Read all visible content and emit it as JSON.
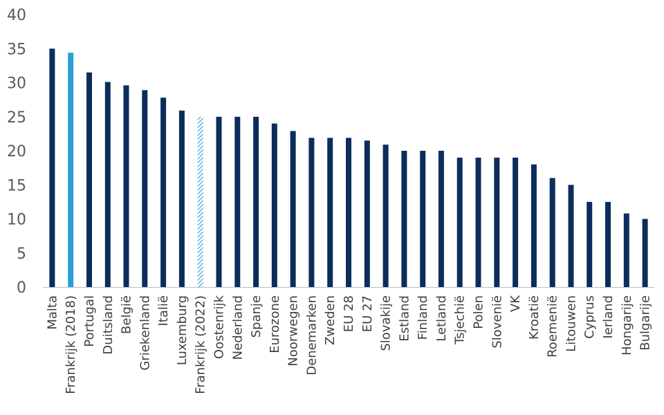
{
  "chart_data": {
    "type": "bar",
    "title": "",
    "xlabel": "",
    "ylabel": "",
    "ylim": [
      0,
      40
    ],
    "yticks": [
      0,
      5,
      10,
      15,
      20,
      25,
      30,
      35,
      40
    ],
    "grid": false,
    "legend": "none",
    "categories": [
      "Malta",
      "Frankrijk (2018)",
      "Portugal",
      "Duitsland",
      "België",
      "Griekenland",
      "Italië",
      "Luxemburg",
      "Frankrijk (2022)",
      "Oostenrijk",
      "Nederland",
      "Spanje",
      "Eurozone",
      "Noorwegen",
      "Denemarken",
      "Zweden",
      "EU 28",
      "EU 27",
      "Slovakije",
      "Estland",
      "Finland",
      "Letland",
      "Tsjechië",
      "Polen",
      "Slovenië",
      "VK",
      "Kroatië",
      "Roemenië",
      "Litouwen",
      "Cyprus",
      "Ierland",
      "Hongarije",
      "Bulgarije"
    ],
    "values": [
      35,
      34.4,
      31.5,
      30.1,
      29.6,
      28.9,
      27.8,
      25.9,
      25,
      25,
      25,
      25,
      24,
      22.9,
      21.9,
      21.9,
      21.9,
      21.5,
      20.9,
      20,
      20,
      20,
      19,
      19,
      19,
      19,
      18,
      16,
      15,
      12.5,
      12.5,
      10.8,
      10
    ],
    "colors": {
      "default": "#0b2d5c",
      "highlight": "#2a9fd8",
      "hatched": "#2a9fd8",
      "axis": "#bfbfbf"
    },
    "highlight_category": "Frankrijk (2018)",
    "hatched_category": "Frankrijk (2022)"
  }
}
